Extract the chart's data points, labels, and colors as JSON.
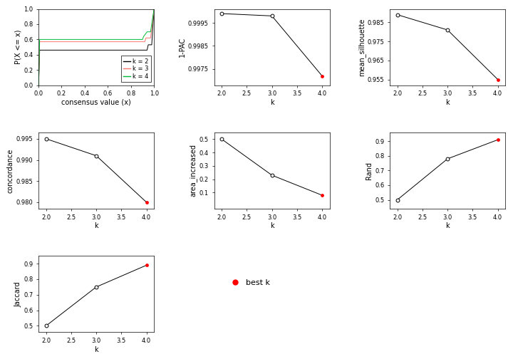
{
  "ecdf_colors": [
    "#000000",
    "#F8766D",
    "#00BA38"
  ],
  "ecdf_legend": [
    "k = 2",
    "k = 3",
    "k = 4"
  ],
  "k_values": [
    2,
    3,
    4
  ],
  "pac_values": [
    0.9999,
    0.9998,
    0.9972
  ],
  "mean_sil_values": [
    0.989,
    0.981,
    0.955
  ],
  "concordance_values": [
    0.995,
    0.991,
    0.98
  ],
  "area_increased_values": [
    0.5,
    0.23,
    0.08
  ],
  "rand_values": [
    0.5,
    0.78,
    0.91
  ],
  "jaccard_values": [
    0.5,
    0.75,
    0.89
  ],
  "best_k": 4,
  "best_k_color": "#FF0000",
  "line_color": "#000000",
  "open_circle_facecolor": "white",
  "open_circle_edgecolor": "#000000",
  "bg_color": "white",
  "axis_fontsize": 7,
  "tick_fontsize": 6,
  "legend_fontsize": 6
}
